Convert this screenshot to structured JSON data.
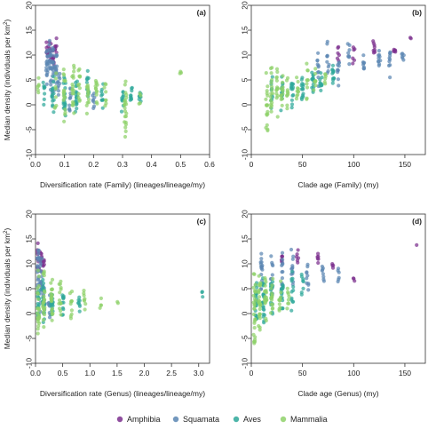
{
  "legend": {
    "placement": "bottom",
    "items": [
      {
        "label": "Amphibia",
        "color": "#7b2f8e"
      },
      {
        "label": "Squamata",
        "color": "#5b86b3"
      },
      {
        "label": "Aves",
        "color": "#2ea89a"
      },
      {
        "label": "Mammalia",
        "color": "#8fd16a"
      }
    ]
  },
  "chart_data": [
    {
      "type": "scatter",
      "panel_label": "(a)",
      "xlabel": "Diversification rate (Family) (lineages/lineage/my)",
      "ylabel": "Median density (individuals per km",
      "ylabel_sup": "2",
      "ylabel_close": ")",
      "xlim": [
        0,
        0.6
      ],
      "ylim": [
        -10,
        20
      ],
      "xticks": [
        0.0,
        0.1,
        0.2,
        0.3,
        0.4,
        0.5,
        0.6
      ],
      "xtick_labels": [
        "0.0",
        "0.1",
        "0.2",
        "0.3",
        "0.4",
        "0.5",
        "0.6"
      ],
      "yticks": [
        -10,
        -5,
        0,
        5,
        10,
        15,
        20
      ],
      "ytick_labels": [
        "-10",
        "-5",
        "0",
        "5",
        "10",
        "15",
        "20"
      ],
      "series": [
        {
          "name": "Amphibia",
          "columns": [
            [
              0.04,
              7,
              14,
              10
            ],
            [
              0.05,
              8,
              15,
              12
            ],
            [
              0.06,
              6,
              13,
              10
            ],
            [
              0.07,
              8,
              14,
              8
            ]
          ]
        },
        {
          "name": "Squamata",
          "columns": [
            [
              0.04,
              3,
              13,
              16
            ],
            [
              0.05,
              2,
              15,
              20
            ],
            [
              0.06,
              0,
              14,
              18
            ],
            [
              0.07,
              2,
              12,
              14
            ],
            [
              0.08,
              0,
              8,
              10
            ],
            [
              0.12,
              -2,
              5,
              10
            ],
            [
              0.2,
              -1,
              4,
              8
            ]
          ]
        },
        {
          "name": "Aves",
          "columns": [
            [
              0.03,
              -2,
              7,
              8
            ],
            [
              0.06,
              -3,
              6,
              14
            ],
            [
              0.1,
              -3,
              7,
              20
            ],
            [
              0.14,
              -3,
              6,
              18
            ],
            [
              0.18,
              -2,
              7,
              14
            ],
            [
              0.23,
              -2,
              6,
              10
            ],
            [
              0.3,
              -2,
              4,
              10
            ],
            [
              0.33,
              0,
              4,
              10
            ],
            [
              0.36,
              0,
              4,
              8
            ]
          ]
        },
        {
          "name": "Mammalia",
          "columns": [
            [
              0.01,
              0,
              8,
              6
            ],
            [
              0.07,
              -1,
              8,
              8
            ],
            [
              0.1,
              -4,
              9,
              18
            ],
            [
              0.13,
              -2,
              9,
              18
            ],
            [
              0.15,
              -2,
              8,
              12
            ],
            [
              0.18,
              -3,
              7,
              14
            ],
            [
              0.21,
              -2,
              7,
              12
            ],
            [
              0.24,
              -1,
              6,
              8
            ],
            [
              0.31,
              -8,
              7,
              22
            ],
            [
              0.36,
              -1,
              3,
              4
            ],
            [
              0.5,
              6,
              7,
              3
            ]
          ]
        }
      ]
    },
    {
      "type": "scatter",
      "panel_label": "(b)",
      "xlabel": "Clade age (Family) (my)",
      "ylabel": "",
      "ylabel_sup": "",
      "ylabel_close": "",
      "xlim": [
        0,
        170
      ],
      "ylim": [
        -10,
        20
      ],
      "xticks": [
        0,
        50,
        100,
        150
      ],
      "xtick_labels": [
        "0",
        "50",
        "100",
        "150"
      ],
      "yticks": [
        -10,
        -5,
        0,
        5,
        10,
        15,
        20
      ],
      "ytick_labels": [
        "-10",
        "-5",
        "0",
        "5",
        "10",
        "15",
        "20"
      ],
      "series": [
        {
          "name": "Amphibia",
          "columns": [
            [
              85,
              8,
              12,
              6
            ],
            [
              100,
              8,
              13,
              6
            ],
            [
              120,
              9,
              14,
              8
            ],
            [
              140,
              10,
              12,
              6
            ],
            [
              155,
              13,
              14,
              2
            ]
          ]
        },
        {
          "name": "Squamata",
          "columns": [
            [
              65,
              2,
              12,
              10
            ],
            [
              75,
              6,
              14,
              10
            ],
            [
              85,
              3,
              12,
              10
            ],
            [
              95,
              6,
              13,
              8
            ],
            [
              110,
              6,
              11,
              8
            ],
            [
              125,
              6,
              12,
              10
            ],
            [
              135,
              5,
              12,
              10
            ],
            [
              148,
              8,
              11,
              6
            ]
          ]
        },
        {
          "name": "Aves",
          "columns": [
            [
              20,
              -2,
              6,
              10
            ],
            [
              30,
              -2,
              7,
              14
            ],
            [
              40,
              -1,
              7,
              14
            ],
            [
              50,
              0,
              8,
              14
            ],
            [
              60,
              2,
              7,
              14
            ],
            [
              68,
              2,
              7,
              10
            ],
            [
              80,
              4,
              9,
              12
            ]
          ]
        },
        {
          "name": "Mammalia",
          "columns": [
            [
              15,
              -8,
              8,
              18
            ],
            [
              20,
              -3,
              9,
              16
            ],
            [
              25,
              -3,
              8,
              14
            ],
            [
              30,
              -2,
              7,
              12
            ],
            [
              35,
              -1,
              7,
              10
            ],
            [
              45,
              -1,
              8,
              10
            ],
            [
              55,
              0,
              9,
              10
            ],
            [
              62,
              1,
              8,
              8
            ],
            [
              72,
              2,
              9,
              6
            ]
          ]
        }
      ]
    },
    {
      "type": "scatter",
      "panel_label": "(c)",
      "xlabel": "Diversification rate (Genus) (lineages/lineage/my)",
      "ylabel": "Median density (individuals per km",
      "ylabel_sup": "2",
      "ylabel_close": ")",
      "xlim": [
        0,
        3.2
      ],
      "ylim": [
        -10,
        20
      ],
      "xticks": [
        0.0,
        0.5,
        1.0,
        1.5,
        2.0,
        2.5,
        3.0
      ],
      "xtick_labels": [
        "0.0",
        "0.5",
        "1.0",
        "1.5",
        "2.0",
        "2.5",
        "3.0"
      ],
      "yticks": [
        -10,
        -5,
        0,
        5,
        10,
        15,
        20
      ],
      "ytick_labels": [
        "-10",
        "-5",
        "0",
        "5",
        "10",
        "15",
        "20"
      ],
      "series": [
        {
          "name": "Amphibia",
          "columns": [
            [
              0.05,
              8,
              15,
              12
            ],
            [
              0.1,
              8,
              13,
              10
            ],
            [
              0.15,
              9,
              12,
              6
            ]
          ]
        },
        {
          "name": "Squamata",
          "columns": [
            [
              0.05,
              3,
              14,
              22
            ],
            [
              0.1,
              0,
              12,
              18
            ],
            [
              0.15,
              -2,
              8,
              14
            ],
            [
              0.25,
              -1,
              5,
              8
            ]
          ]
        },
        {
          "name": "Aves",
          "columns": [
            [
              0.05,
              -3,
              6,
              16
            ],
            [
              0.15,
              -3,
              7,
              20
            ],
            [
              0.3,
              -2,
              6,
              16
            ],
            [
              0.5,
              -2,
              5,
              12
            ],
            [
              0.8,
              0,
              4,
              8
            ],
            [
              3.07,
              2,
              5,
              3
            ]
          ]
        },
        {
          "name": "Mammalia",
          "columns": [
            [
              0.05,
              -8,
              10,
              24
            ],
            [
              0.15,
              -4,
              9,
              22
            ],
            [
              0.3,
              -3,
              8,
              20
            ],
            [
              0.45,
              -2,
              7,
              14
            ],
            [
              0.65,
              -2,
              6,
              10
            ],
            [
              0.9,
              -1,
              5,
              8
            ],
            [
              1.2,
              0,
              4,
              4
            ],
            [
              1.5,
              1,
              3,
              2
            ]
          ]
        }
      ]
    },
    {
      "type": "scatter",
      "panel_label": "(d)",
      "xlabel": "Clade age (Genus) (my)",
      "ylabel": "",
      "ylabel_sup": "",
      "ylabel_close": "",
      "xlim": [
        0,
        170
      ],
      "ylim": [
        -10,
        20
      ],
      "xticks": [
        0,
        50,
        100,
        150
      ],
      "xtick_labels": [
        "0",
        "50",
        "100",
        "150"
      ],
      "yticks": [
        -10,
        -5,
        0,
        5,
        10,
        15,
        20
      ],
      "ytick_labels": [
        "-10",
        "-5",
        "0",
        "5",
        "10",
        "15",
        "20"
      ],
      "series": [
        {
          "name": "Amphibia",
          "columns": [
            [
              30,
              9,
              13,
              6
            ],
            [
              45,
              10,
              14,
              6
            ],
            [
              65,
              10,
              13,
              6
            ],
            [
              80,
              8,
              12,
              4
            ],
            [
              100,
              6,
              8,
              3
            ],
            [
              162,
              13,
              14,
              1
            ]
          ]
        },
        {
          "name": "Squamata",
          "columns": [
            [
              10,
              2,
              14,
              16
            ],
            [
              20,
              2,
              13,
              14
            ],
            [
              30,
              3,
              13,
              12
            ],
            [
              40,
              4,
              14,
              12
            ],
            [
              55,
              4,
              13,
              10
            ],
            [
              70,
              5,
              12,
              8
            ],
            [
              85,
              6,
              10,
              6
            ]
          ]
        },
        {
          "name": "Aves",
          "columns": [
            [
              5,
              -3,
              7,
              24
            ],
            [
              12,
              -3,
              8,
              24
            ],
            [
              20,
              -2,
              8,
              18
            ],
            [
              30,
              -1,
              9,
              14
            ],
            [
              40,
              0,
              9,
              12
            ],
            [
              50,
              2,
              9,
              8
            ]
          ]
        },
        {
          "name": "Mammalia",
          "columns": [
            [
              3,
              -8,
              9,
              28
            ],
            [
              8,
              -4,
              9,
              28
            ],
            [
              14,
              -3,
              9,
              22
            ],
            [
              20,
              -2,
              8,
              16
            ],
            [
              28,
              -1,
              7,
              12
            ],
            [
              36,
              0,
              7,
              8
            ]
          ]
        }
      ]
    }
  ]
}
